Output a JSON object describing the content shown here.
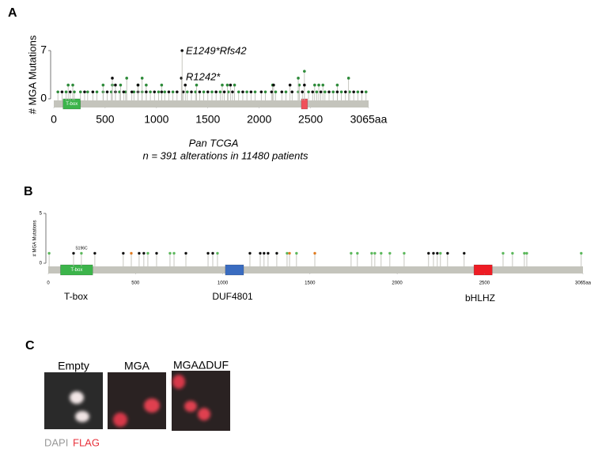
{
  "panels": [
    "A",
    "B",
    "C"
  ],
  "chart_data": [
    {
      "type": "lollipop",
      "y_label": "# MGA Mutations",
      "title": "Pan TCGA",
      "subtitle": "n = 391 alterations in 11480 patients",
      "xlim": [
        0,
        3065
      ],
      "xticks": [
        0,
        500,
        1000,
        1500,
        2000,
        2500,
        {
          "value": 3065,
          "label": "3065aa"
        }
      ],
      "ylim": [
        0,
        7
      ],
      "yticks": [
        0,
        7
      ],
      "annotations": [
        "E1249*Rfs42",
        "R1242*"
      ],
      "domains": [
        {
          "label": "T-box",
          "start": 90,
          "end": 260,
          "color": "#3cb44b"
        },
        {
          "start": 2410,
          "end": 2470,
          "color": "#f0505a"
        }
      ],
      "series": [
        {
          "color": "#2e8b3a",
          "x": [
            40,
            120,
            200,
            260,
            330,
            420,
            480,
            560,
            640,
            700,
            780,
            860,
            940,
            1020,
            1080,
            1160,
            1300,
            1380,
            1460,
            1540,
            1620,
            1700,
            1800,
            1880,
            1960,
            2060,
            2160,
            2260,
            2380,
            2480,
            2560,
            2640,
            2720,
            2800,
            2880,
            2960,
            3040,
            140,
            185,
            480,
            570,
            650,
            820,
            900,
            1050,
            1390,
            1640,
            1690,
            1760,
            2130,
            2390,
            2540,
            2580,
            2620,
            2760,
            710,
            860,
            2380,
            2870,
            2440
          ],
          "values": [
            1,
            1,
            1,
            1,
            1,
            1,
            1,
            1,
            1,
            1,
            1,
            1,
            1,
            1,
            1,
            1,
            1,
            1,
            1,
            1,
            1,
            1,
            1,
            1,
            1,
            1,
            1,
            1,
            1,
            1,
            1,
            1,
            1,
            1,
            1,
            1,
            1,
            2,
            2,
            2,
            2,
            2,
            2,
            2,
            2,
            2,
            2,
            2,
            2,
            2,
            2,
            2,
            2,
            2,
            2,
            3,
            3,
            3,
            3,
            4
          ]
        },
        {
          "color": "#111111",
          "x": [
            80,
            160,
            300,
            380,
            520,
            600,
            680,
            760,
            820,
            900,
            980,
            1050,
            1120,
            1200,
            1260,
            1340,
            1420,
            1500,
            1580,
            1660,
            1740,
            1840,
            1920,
            2020,
            2120,
            2220,
            2320,
            2420,
            2520,
            2600,
            2680,
            2760,
            2840,
            2920,
            3000,
            600,
            820,
            1280,
            1720,
            2140,
            2300,
            2440,
            570,
            1242,
            1249
          ],
          "values": [
            1,
            1,
            1,
            1,
            1,
            1,
            1,
            1,
            1,
            1,
            1,
            1,
            1,
            1,
            1,
            1,
            1,
            1,
            1,
            1,
            1,
            1,
            1,
            1,
            1,
            1,
            1,
            1,
            1,
            1,
            1,
            1,
            1,
            1,
            1,
            2,
            2,
            2,
            2,
            2,
            2,
            2,
            3,
            3,
            7
          ]
        }
      ]
    },
    {
      "type": "lollipop",
      "y_label": "# MGA Mutations",
      "xlim": [
        0,
        3065
      ],
      "xticks": [
        0,
        500,
        1000,
        1500,
        2000,
        2500,
        {
          "value": 3065,
          "label": "3065aa"
        }
      ],
      "ylim": [
        0,
        5
      ],
      "yticks": [
        0,
        5
      ],
      "annotations": [
        "S196C"
      ],
      "domains": [
        {
          "label": "T-box",
          "start": 70,
          "end": 255,
          "color": "#3cb44b"
        },
        {
          "start": 1015,
          "end": 1120,
          "color": "#3a6cc0"
        },
        {
          "start": 2440,
          "end": 2545,
          "color": "#ee1c24"
        }
      ],
      "domain_names": [
        "T-box",
        "DUF4801",
        "bHLHZ"
      ],
      "series": [
        {
          "color": "#5cb85c",
          "x": [
            5,
            190,
            571,
            698,
            721,
            970,
            1369,
            1423,
            1736,
            1772,
            1854,
            1872,
            1908,
            1958,
            2040,
            2248,
            2607,
            2661,
            2729,
            2743,
            3055
          ],
          "values": [
            1,
            1,
            1,
            1,
            1,
            1,
            1,
            1,
            1,
            1,
            1,
            1,
            1,
            1,
            1,
            1,
            1,
            1,
            1,
            1,
            1
          ]
        },
        {
          "color": "#111111",
          "x": [
            145,
            267,
            430,
            521,
            548,
            621,
            789,
            916,
            943,
            1156,
            1215,
            1237,
            1260,
            1310,
            2180,
            2208,
            2230,
            2289,
            2384
          ],
          "values": [
            1,
            1,
            1,
            1,
            1,
            1,
            1,
            1,
            1,
            1,
            1,
            1,
            1,
            1,
            1,
            1,
            1,
            1,
            1
          ]
        },
        {
          "color": "#e07b20",
          "x": [
            476,
            1383,
            1528
          ],
          "values": [
            1,
            1,
            1
          ]
        }
      ]
    }
  ],
  "microscopy": {
    "conditions": [
      "Empty",
      "MGA",
      "MGAΔDUF"
    ],
    "stains": [
      "DAPI",
      "FLAG"
    ]
  }
}
